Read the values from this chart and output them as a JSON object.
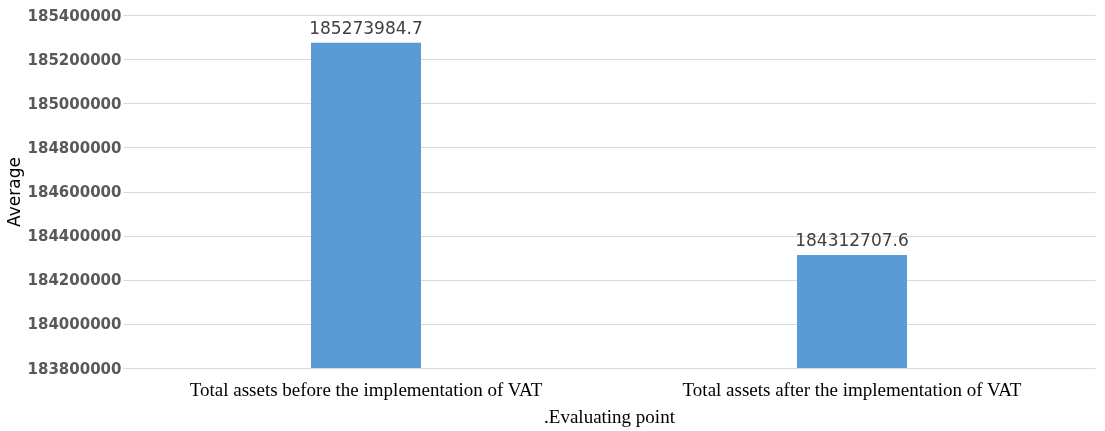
{
  "chart_data": {
    "type": "bar",
    "ylabel": "Average",
    "xlabel": ".Evaluating point",
    "categories": [
      "Total assets before the implementation of VAT",
      "Total assets after the implementation of  VAT"
    ],
    "values": [
      185273984.7,
      184312707.6
    ],
    "color": "#5b9bd5",
    "ylim": [
      183800000,
      185400000
    ],
    "yticks": [
      183800000,
      184000000,
      184200000,
      184400000,
      184600000,
      184800000,
      185000000,
      185200000,
      185400000
    ],
    "grid": "y",
    "data_labels": true
  }
}
